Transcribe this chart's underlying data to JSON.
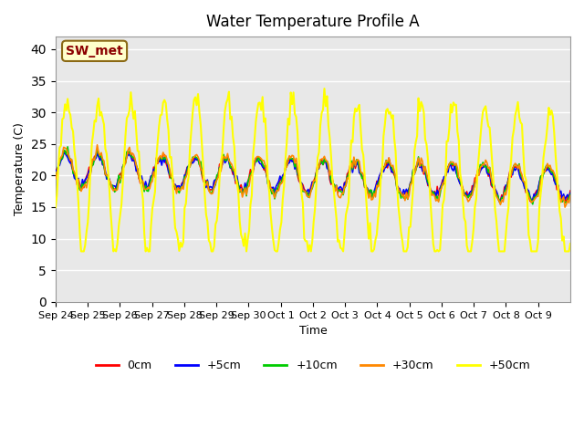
{
  "title": "Water Temperature Profile A",
  "xlabel": "Time",
  "ylabel": "Temperature (C)",
  "ylim": [
    0,
    42
  ],
  "yticks": [
    0,
    5,
    10,
    15,
    20,
    25,
    30,
    35,
    40
  ],
  "plot_bg_color": "#e8e8e8",
  "fig_bg_color": "#ffffff",
  "annotation_text": "SW_met",
  "annotation_color": "#8b0000",
  "annotation_bg": "#ffffcc",
  "annotation_border": "#8b6914",
  "legend_entries": [
    "0cm",
    "+5cm",
    "+10cm",
    "+30cm",
    "+50cm"
  ],
  "line_colors": [
    "#ff0000",
    "#0000ff",
    "#00cc00",
    "#ff8800",
    "#ffff00"
  ],
  "line_widths": [
    1.2,
    1.2,
    1.2,
    1.2,
    1.5
  ],
  "xtick_labels": [
    "Sep 24",
    "Sep 25",
    "Sep 26",
    "Sep 27",
    "Sep 28",
    "Sep 29",
    "Sep 30",
    "Oct 1",
    "Oct 2",
    "Oct 3",
    "Oct 4",
    "Oct 5",
    "Oct 6",
    "Oct 7",
    "Oct 8",
    "Oct 9"
  ],
  "n_days": 16
}
